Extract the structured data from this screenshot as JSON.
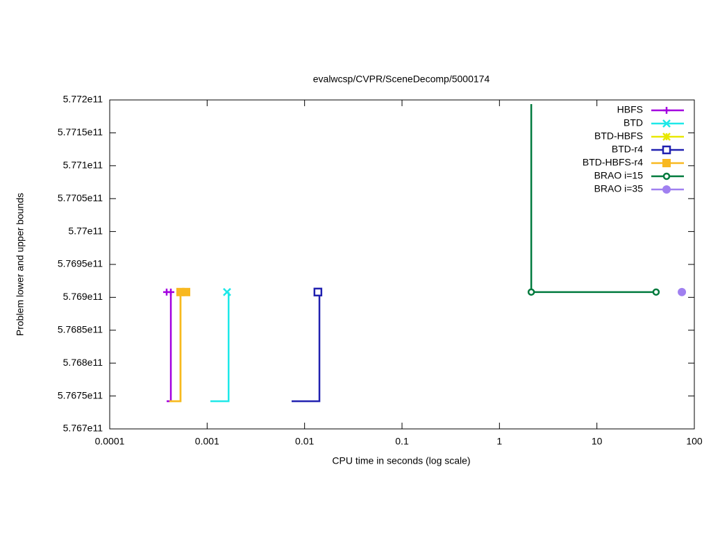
{
  "chart_data": {
    "type": "line",
    "title": "evalwcsp/CVPR/SceneDecomp/5000174",
    "x_label": "CPU time in seconds (log scale)",
    "y_label": "Problem lower and upper bounds",
    "x_log": true,
    "legend": "top-right",
    "xlim": [
      0.0001,
      100
    ],
    "xticks": [
      0.0001,
      0.001,
      0.01,
      0.1,
      1,
      10,
      100
    ],
    "ylim": [
      576700000000,
      577200000000
    ],
    "yticks": [
      {
        "value": 576700000000,
        "label": "5.767e11"
      },
      {
        "value": 576750000000,
        "label": "5.7675e11"
      },
      {
        "value": 576800000000,
        "label": "5.768e11"
      },
      {
        "value": 576850000000,
        "label": "5.7685e11"
      },
      {
        "value": 576900000000,
        "label": "5.769e11"
      },
      {
        "value": 576950000000,
        "label": "5.7695e11"
      },
      {
        "value": 577000000000,
        "label": "5.77e11"
      },
      {
        "value": 577050000000,
        "label": "5.7705e11"
      },
      {
        "value": 577100000000,
        "label": "5.771e11"
      },
      {
        "value": 577150000000,
        "label": "5.7715e11"
      },
      {
        "value": 577200000000,
        "label": "5.772e11"
      }
    ],
    "series": [
      {
        "name": "HBFS",
        "color": "#a300e0",
        "marker": "plus",
        "x": [
          0.000384,
          0.000424,
          0.000424
        ],
        "values": [
          576742000000,
          576742000000,
          576908000000
        ],
        "point_x": [
          0.000384,
          0.000424
        ],
        "point_values": [
          576908000000,
          576908000000
        ]
      },
      {
        "name": "BTD",
        "color": "#1de8e8",
        "marker": "cross",
        "x": [
          0.00108,
          0.00166,
          0.00166
        ],
        "values": [
          576742000000,
          576742000000,
          576908000000
        ],
        "point_x": [
          0.0016
        ],
        "point_values": [
          576908000000
        ]
      },
      {
        "name": "BTD-HBFS",
        "color": "#e8e800",
        "marker": "asterisk",
        "x": [
          0.00041,
          0.000533,
          0.000533
        ],
        "values": [
          576742000000,
          576742000000,
          576908000000
        ],
        "point_x": [
          0.000533
        ],
        "point_values": [
          576908000000
        ]
      },
      {
        "name": "BTD-r4",
        "color": "#2020b0",
        "marker": "square-open",
        "x": [
          0.00736,
          0.0142,
          0.0142
        ],
        "values": [
          576742000000,
          576742000000,
          576908000000
        ],
        "point_x": [
          0.0137
        ],
        "point_values": [
          576908000000
        ]
      },
      {
        "name": "BTD-HBFS-r4",
        "color": "#f8b820",
        "marker": "square-filled",
        "x": [
          0.00041,
          0.000533,
          0.000533
        ],
        "values": [
          576742000000,
          576742000000,
          576908000000
        ],
        "point_x": [
          0.000533,
          0.000608
        ],
        "point_values": [
          576908000000,
          576908000000
        ]
      },
      {
        "name": "BRAO i=15",
        "color": "#007a3d",
        "marker": "circle-open",
        "x": [
          2.12,
          2.12,
          40.5
        ],
        "values": [
          577193700000,
          576908000000,
          576908000000
        ],
        "point_x": [
          2.12,
          40.5
        ],
        "point_values": [
          576908000000,
          576908000000
        ]
      },
      {
        "name": "BRAO i=35",
        "color": "#a080f0",
        "marker": "circle-filled",
        "x": [],
        "values": [],
        "point_x": [
          74.5
        ],
        "point_values": [
          576908000000
        ]
      }
    ]
  }
}
